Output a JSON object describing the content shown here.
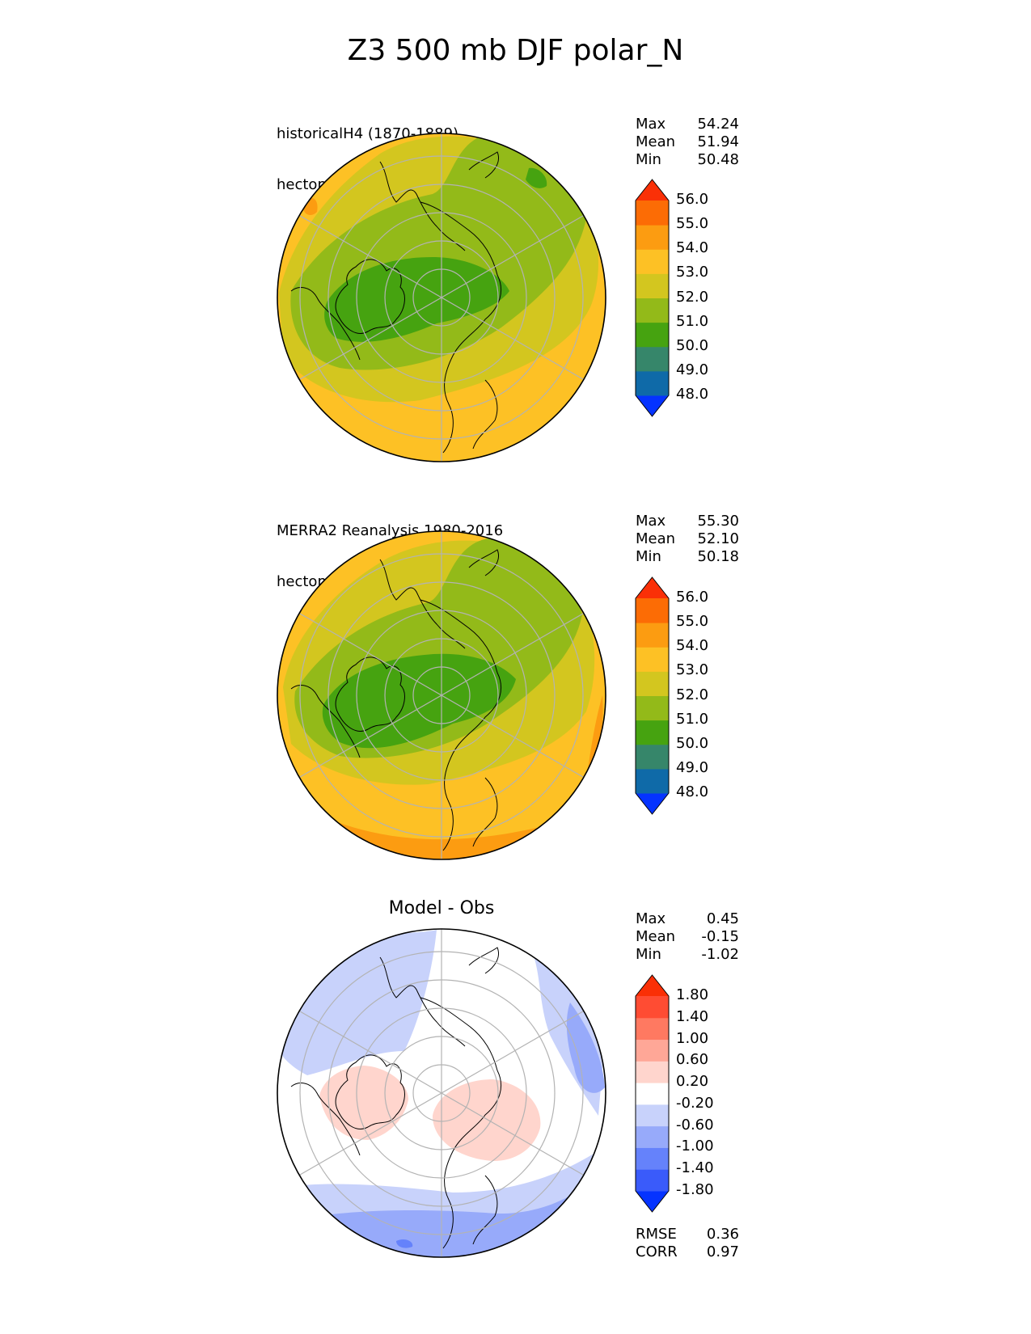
{
  "suptitle": "Z3 500 mb DJF polar_N",
  "panels": [
    {
      "id": "test",
      "title_lines": [
        "historicalH4 (1870-1889)",
        "hectometer"
      ],
      "center_title": "",
      "stats": [
        [
          "Max",
          "54.24"
        ],
        [
          "Mean",
          "51.94"
        ],
        [
          "Min",
          "50.48"
        ]
      ],
      "extra_stats": []
    },
    {
      "id": "ref",
      "title_lines": [
        "MERRA2 Reanalysis 1980-2016",
        "hectometer"
      ],
      "center_title": "",
      "stats": [
        [
          "Max",
          "55.30"
        ],
        [
          "Mean",
          "52.10"
        ],
        [
          "Min",
          "50.18"
        ]
      ],
      "extra_stats": []
    },
    {
      "id": "diff",
      "title_lines": [],
      "center_title": "Model - Obs",
      "stats": [
        [
          "Max",
          "0.45"
        ],
        [
          "Mean",
          "-0.15"
        ],
        [
          "Min",
          "-1.02"
        ]
      ],
      "extra_stats": [
        [
          "RMSE",
          "0.36"
        ],
        [
          "CORR",
          "0.97"
        ]
      ]
    }
  ],
  "chart_data": [
    {
      "type": "heatmap",
      "projection": "north-polar-stereographic",
      "title": "historicalH4 (1870-1889)",
      "units": "hectometer",
      "colorbar": {
        "levels": [
          48.0,
          49.0,
          50.0,
          51.0,
          52.0,
          53.0,
          54.0,
          55.0,
          56.0
        ],
        "tick_labels": [
          "48.0",
          "49.0",
          "50.0",
          "51.0",
          "52.0",
          "53.0",
          "54.0",
          "55.0",
          "56.0"
        ],
        "colors": [
          "#0533ff",
          "#0f6aa8",
          "#36866a",
          "#46a310",
          "#93ba19",
          "#d3c61f",
          "#fdc125",
          "#fc9c11",
          "#fc6c05",
          "#fa3007"
        ],
        "extend": "both"
      },
      "stats": {
        "max": 54.24,
        "mean": 51.94,
        "min": 50.48
      }
    },
    {
      "type": "heatmap",
      "projection": "north-polar-stereographic",
      "title": "MERRA2 Reanalysis 1980-2016",
      "units": "hectometer",
      "colorbar": {
        "levels": [
          48.0,
          49.0,
          50.0,
          51.0,
          52.0,
          53.0,
          54.0,
          55.0,
          56.0
        ],
        "tick_labels": [
          "48.0",
          "49.0",
          "50.0",
          "51.0",
          "52.0",
          "53.0",
          "54.0",
          "55.0",
          "56.0"
        ],
        "colors": [
          "#0533ff",
          "#0f6aa8",
          "#36866a",
          "#46a310",
          "#93ba19",
          "#d3c61f",
          "#fdc125",
          "#fc9c11",
          "#fc6c05",
          "#fa3007"
        ],
        "extend": "both"
      },
      "stats": {
        "max": 55.3,
        "mean": 52.1,
        "min": 50.18
      }
    },
    {
      "type": "heatmap",
      "projection": "north-polar-stereographic",
      "title": "Model - Obs",
      "units": "",
      "colorbar": {
        "levels": [
          -1.8,
          -1.4,
          -1.0,
          -0.6,
          -0.2,
          0.2,
          0.6,
          1.0,
          1.4,
          1.8
        ],
        "tick_labels": [
          "-1.80",
          "-1.40",
          "-1.00",
          "-0.60",
          "-0.20",
          "0.20",
          "0.60",
          "1.00",
          "1.40",
          "1.80"
        ],
        "colors": [
          "#0533ff",
          "#3a5bfa",
          "#6582fb",
          "#97aafa",
          "#c8d2fb",
          "#ffffff",
          "#ffd5cd",
          "#ffa797",
          "#ff7961",
          "#ff4c33",
          "#fa2f06"
        ],
        "extend": "both"
      },
      "stats": {
        "max": 0.45,
        "mean": -0.15,
        "min": -1.02,
        "rmse": 0.36,
        "corr": 0.97
      }
    }
  ]
}
